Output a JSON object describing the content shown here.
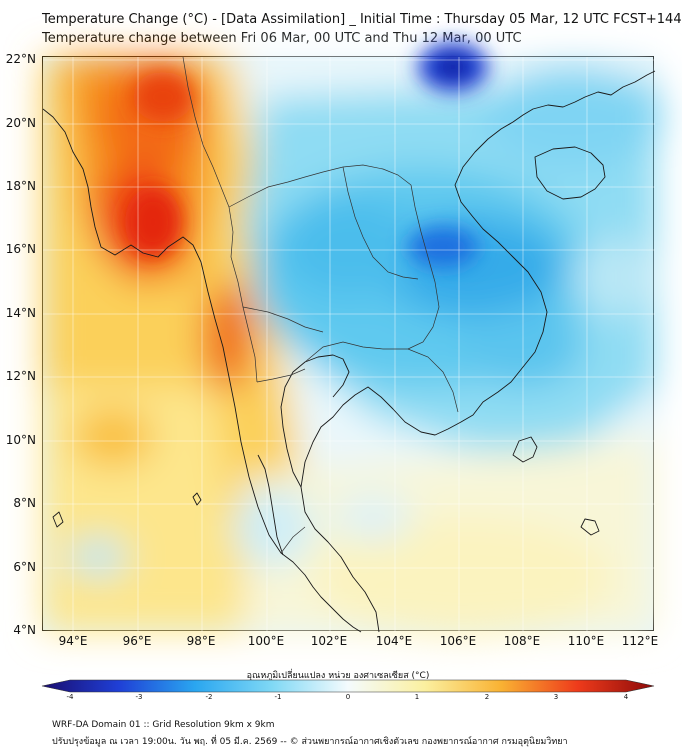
{
  "title_line1": "Temperature Change (°C) - [Data Assimilation] _ Initial Time : Thursday 05 Mar, 12 UTC FCST+144",
  "title_line2": "Temperature change between Fri 06 Mar, 00 UTC and Thu 12 Mar, 00 UTC",
  "lat_labels": [
    "22°N",
    "20°N",
    "18°N",
    "16°N",
    "14°N",
    "12°N",
    "10°N",
    "8°N",
    "6°N",
    "4°N"
  ],
  "lon_labels": [
    "94°E",
    "96°E",
    "98°E",
    "100°E",
    "102°E",
    "104°E",
    "106°E",
    "108°E",
    "110°E",
    "112°E"
  ],
  "colorbar": {
    "label": "อุณหภูมิเปลี่ยนแปลง หน่วย องศาเซลเซียส (°C)",
    "ticks": [
      "-4",
      "-3",
      "-2",
      "-1",
      "0",
      "1",
      "2",
      "3",
      "4"
    ],
    "colors": [
      "#1a0d6e",
      "#1f3fd6",
      "#2aa6f0",
      "#7fd8f5",
      "#f4fbfd",
      "#fbf0a0",
      "#f9b233",
      "#ee3b1b",
      "#8c0a0a"
    ]
  },
  "footer_line1": "WRF-DA Domain 01 :: Grid Resolution 9km x 9km",
  "footer_line2": "ปรับปรุงข้อมูล ณ เวลา 19:00น. วัน พฤ. ที่ 05 มี.ค. 2569 -- © ส่วนพยากรณ์อากาศเชิงตัวเลข กองพยากรณ์อากาศ กรมอุตุนิยมวิทยา"
}
